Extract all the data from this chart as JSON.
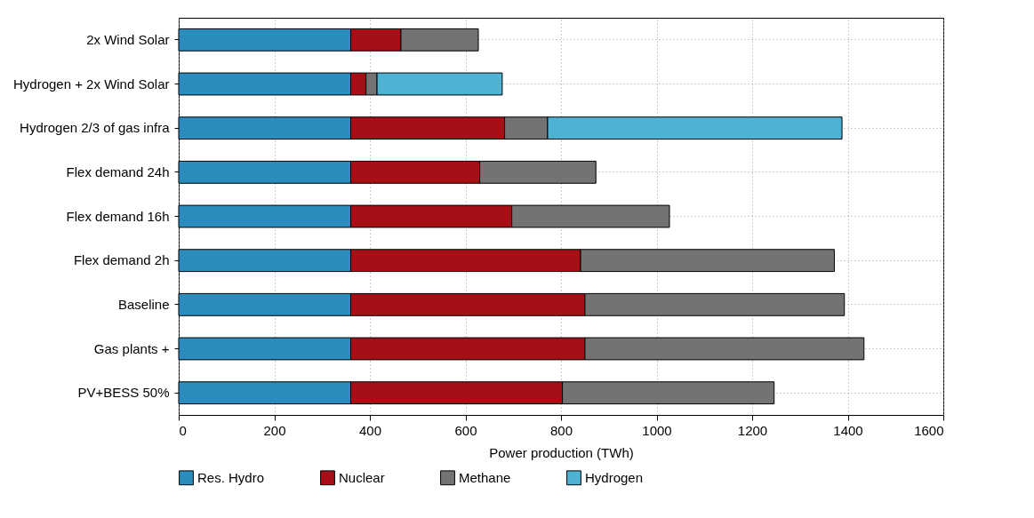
{
  "chart_data": {
    "type": "bar",
    "orientation": "horizontal",
    "stacked": true,
    "xlabel": "Power production (TWh)",
    "categories": [
      "2x Wind  Solar",
      "Hydrogen + 2x Wind  Solar",
      "Hydrogen 2/3 of gas infra",
      "Flex demand 24h",
      "Flex demand 16h",
      "Flex demand 2h",
      "Baseline",
      "Gas plants +",
      "PV+BESS 50%"
    ],
    "series": [
      {
        "name": "Res. Hydro",
        "color": "#2b8cbe",
        "values": [
          360,
          360,
          360,
          360,
          360,
          360,
          360,
          360,
          360
        ]
      },
      {
        "name": "Nuclear",
        "color": "#a50f15",
        "values": [
          105,
          32,
          322,
          270,
          337,
          481,
          490,
          490,
          443
        ]
      },
      {
        "name": "Methane",
        "color": "#737373",
        "values": [
          162,
          23,
          90,
          243,
          330,
          531,
          543,
          584,
          443
        ]
      },
      {
        "name": "Hydrogen",
        "color": "#4eb3d3",
        "values": [
          null,
          262,
          616,
          null,
          null,
          null,
          null,
          null,
          null
        ]
      }
    ],
    "xlim": [
      0,
      1600
    ],
    "xticks": [
      0,
      200,
      400,
      600,
      800,
      1000,
      1200,
      1400,
      1600
    ],
    "grid": true,
    "legend": "bottom"
  }
}
